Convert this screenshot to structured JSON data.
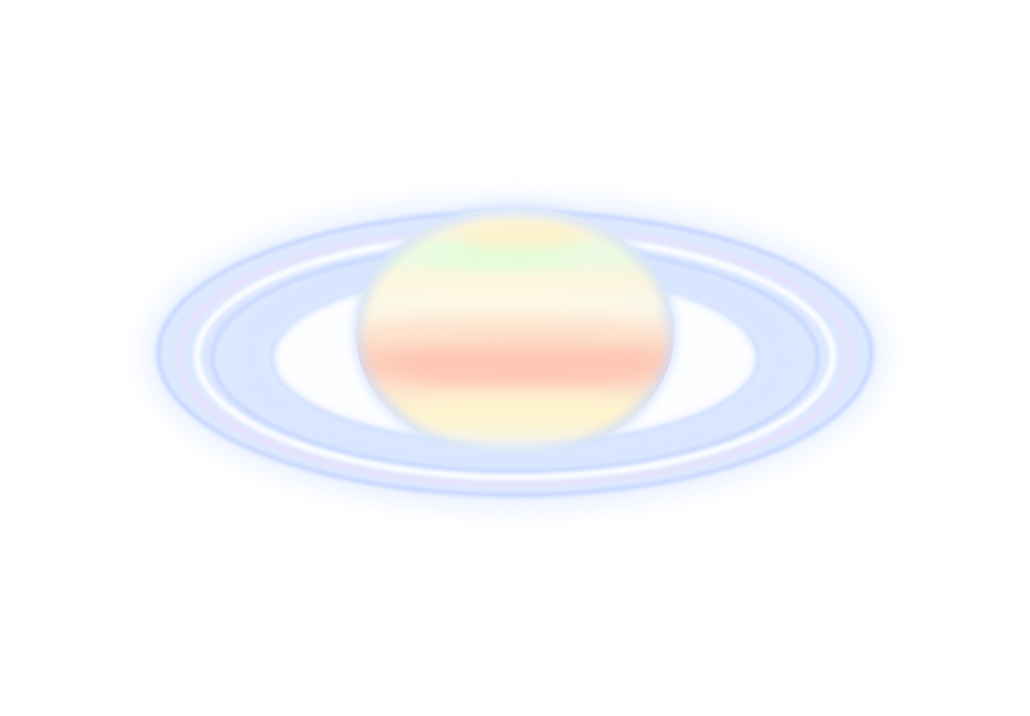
{
  "image": {
    "subject": "planet-with-rings",
    "style": "pale-false-color",
    "colors": {
      "background": "#ffffff",
      "ring_main": "#d9e6ff",
      "ring_edge": "#b8cbff",
      "ring_glow": "#eef4ff",
      "ring_gap": "#ffffff",
      "ring_tint_pink": "#f6dcf3",
      "planet_base": "#f5fbff",
      "planet_limb": "#cfe0ff",
      "band_red": "#ffc7b5",
      "band_orange": "#ffe0c2",
      "band_yellow": "#fff3c8",
      "band_green": "#dbffd8",
      "band_pale_yellow": "#fff6d6"
    }
  }
}
